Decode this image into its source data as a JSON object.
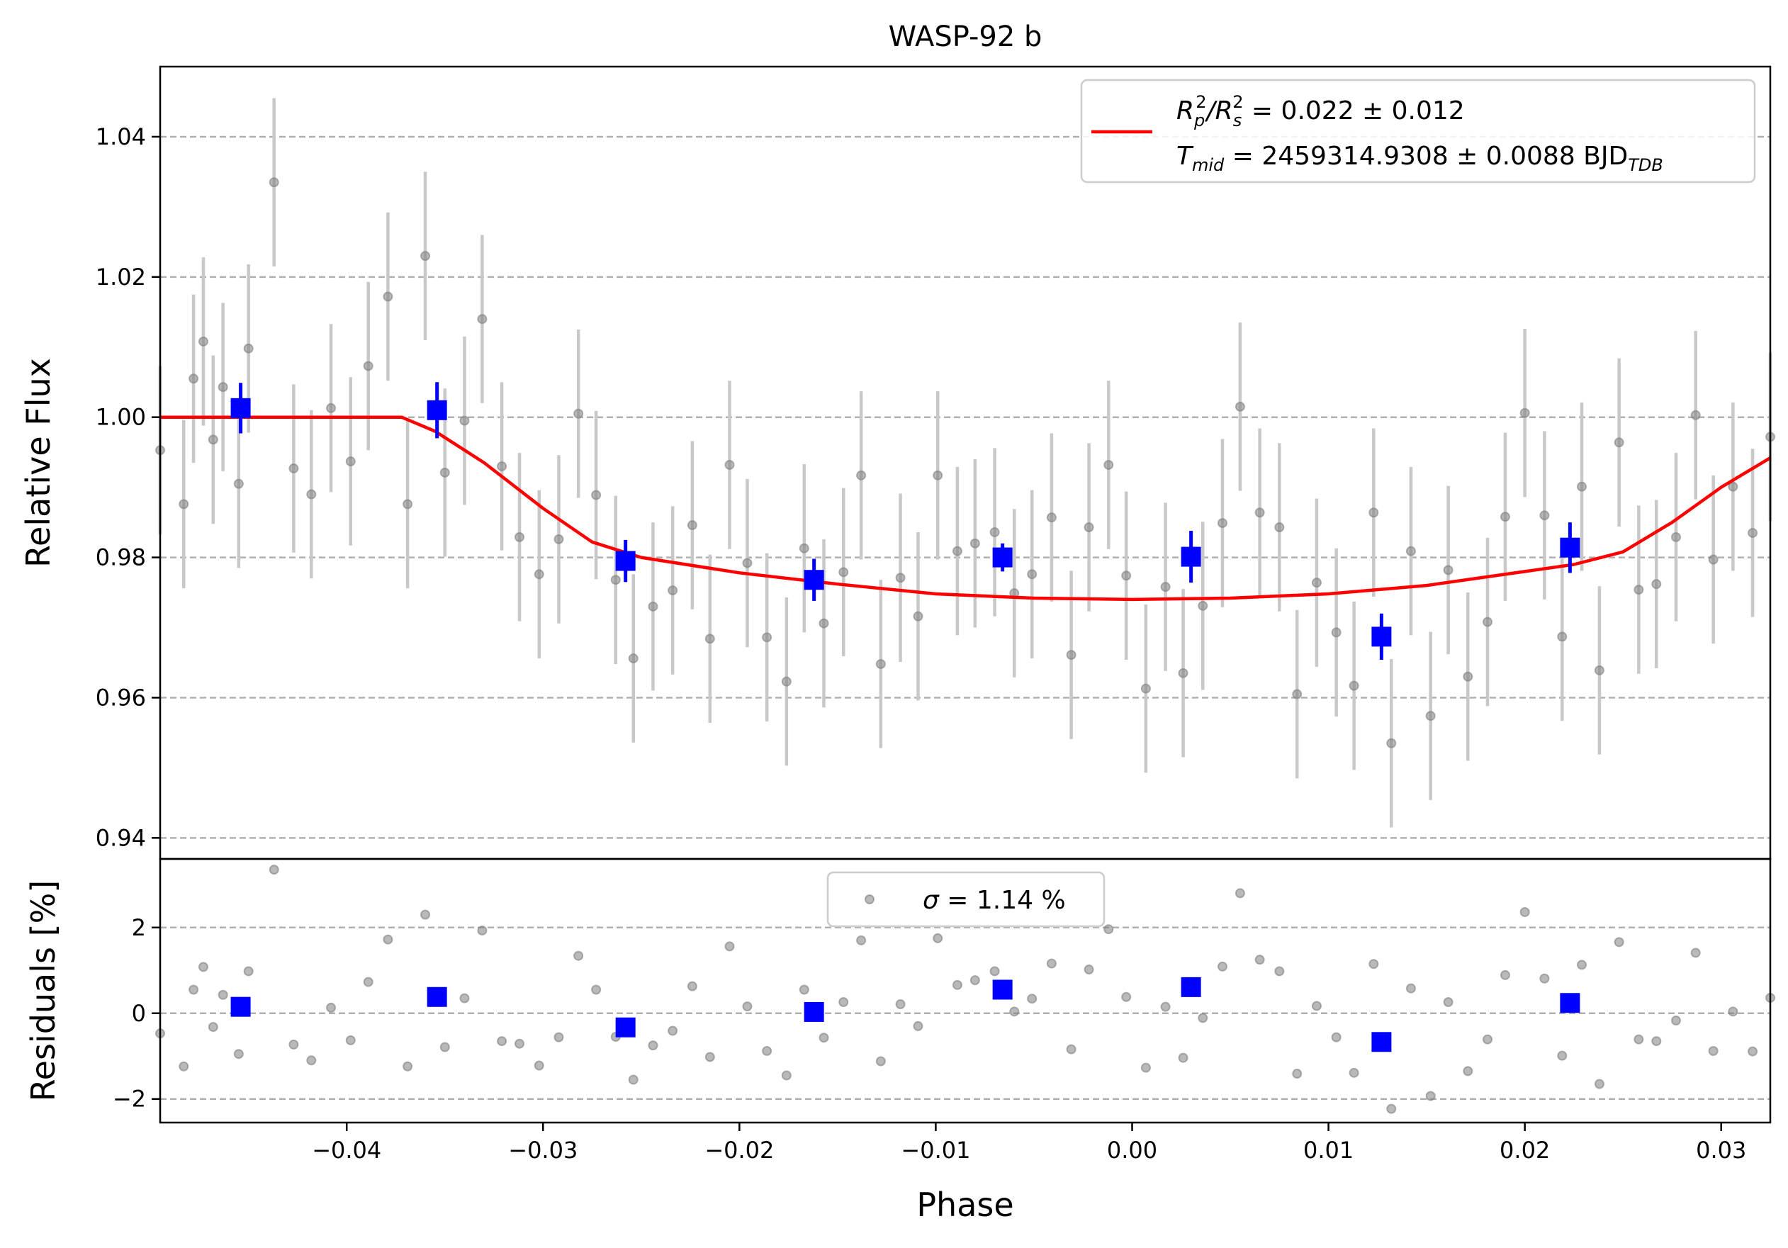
{
  "chart_data": {
    "type": "scatter",
    "title": "WASP-92 b",
    "xlabel": "Phase",
    "xlim": [
      -0.0495,
      0.0325
    ],
    "xticks": [
      -0.04,
      -0.03,
      -0.02,
      -0.01,
      0.0,
      0.01,
      0.02,
      0.03
    ],
    "xtick_labels": [
      "−0.04",
      "−0.03",
      "−0.02",
      "−0.01",
      "0.00",
      "0.01",
      "0.02",
      "0.03"
    ],
    "grid": "horizontal dashed",
    "colors": {
      "raw": "#808080",
      "raw_err": "#c8c8c8",
      "binned": "#0000ff",
      "model": "#ff0000"
    },
    "panels": {
      "flux": {
        "ylabel": "Relative Flux",
        "ylim": [
          0.937,
          1.05
        ],
        "yticks": [
          0.94,
          0.96,
          0.98,
          1.0,
          1.02,
          1.04
        ],
        "ytick_labels": [
          "0.94",
          "0.96",
          "0.98",
          "1.00",
          "1.02",
          "1.04"
        ],
        "legend": {
          "position": "upper-right",
          "prefix1": "R",
          "sub1a": "p",
          "sup1a": "2",
          "slash": "/R",
          "sub1b": "s",
          "sup1b": "2",
          "value1": " = 0.022 ± 0.012",
          "prefix2": "T",
          "sub2": "mid",
          "value2": " = 2459314.9308 ± 0.0088 BJD",
          "sub2b": "TDB"
        },
        "raw": {
          "x": [
            -0.0495,
            -0.0483,
            -0.0478,
            -0.0473,
            -0.0468,
            -0.0463,
            -0.0455,
            -0.045,
            -0.0437,
            -0.0427,
            -0.0418,
            -0.0408,
            -0.0398,
            -0.0389,
            -0.0379,
            -0.0369,
            -0.036,
            -0.035,
            -0.034,
            -0.0331,
            -0.0321,
            -0.0312,
            -0.0302,
            -0.0292,
            -0.0282,
            -0.0273,
            -0.0263,
            -0.0254,
            -0.0244,
            -0.0234,
            -0.0224,
            -0.0215,
            -0.0205,
            -0.0196,
            -0.0186,
            -0.0176,
            -0.0167,
            -0.0157,
            -0.0147,
            -0.0138,
            -0.0128,
            -0.0118,
            -0.0109,
            -0.0099,
            -0.0089,
            -0.008,
            -0.007,
            -0.006,
            -0.0051,
            -0.0041,
            -0.0031,
            -0.0022,
            -0.0012,
            -0.0003,
            0.0007,
            0.0017,
            0.0026,
            0.0036,
            0.0046,
            0.0055,
            0.0065,
            0.0075,
            0.0084,
            0.0094,
            0.0104,
            0.0113,
            0.0123,
            0.0132,
            0.0142,
            0.0152,
            0.0161,
            0.0171,
            0.0181,
            0.019,
            0.02,
            0.021,
            0.0219,
            0.0229,
            0.0238,
            0.0248,
            0.0258,
            0.0267,
            0.0277,
            0.0287,
            0.0296,
            0.0306,
            0.0316,
            0.0325
          ],
          "y": [
            0.9953,
            0.9876,
            1.0055,
            1.0108,
            0.9968,
            1.0043,
            0.9905,
            1.0098,
            1.0335,
            0.9927,
            0.989,
            1.0013,
            0.9937,
            1.0073,
            1.0172,
            0.9876,
            1.023,
            0.9921,
            0.9995,
            1.014,
            0.993,
            0.9829,
            0.9776,
            0.9826,
            1.0005,
            0.9889,
            0.9768,
            0.9656,
            0.973,
            0.9753,
            0.9846,
            0.9684,
            0.9932,
            0.9792,
            0.9686,
            0.9623,
            0.9813,
            0.9706,
            0.9779,
            0.9917,
            0.9648,
            0.9771,
            0.9716,
            0.9917,
            0.9809,
            0.982,
            0.9836,
            0.9749,
            0.9776,
            0.9857,
            0.9661,
            0.9843,
            0.9932,
            0.9774,
            0.9613,
            0.9758,
            0.9635,
            0.9731,
            0.9849,
            1.0015,
            0.9864,
            0.9843,
            0.9605,
            0.9764,
            0.9693,
            0.9617,
            0.9864,
            0.9535,
            0.9809,
            0.9574,
            0.9782,
            0.963,
            0.9708,
            0.9858,
            1.0006,
            0.986,
            0.9687,
            0.9901,
            0.9639,
            0.9964,
            0.9754,
            0.9762,
            0.9829,
            1.0003,
            0.9797,
            0.9901,
            0.9835,
            0.9972
          ],
          "err": [
            0.012,
            0.012,
            0.012,
            0.012,
            0.012,
            0.012,
            0.012,
            0.012,
            0.012,
            0.012,
            0.012,
            0.012,
            0.012,
            0.012,
            0.012,
            0.012,
            0.012,
            0.012,
            0.012,
            0.012,
            0.012,
            0.012,
            0.012,
            0.012,
            0.012,
            0.012,
            0.012,
            0.012,
            0.012,
            0.012,
            0.012,
            0.012,
            0.012,
            0.012,
            0.012,
            0.012,
            0.012,
            0.012,
            0.012,
            0.012,
            0.012,
            0.012,
            0.012,
            0.012,
            0.012,
            0.012,
            0.012,
            0.012,
            0.012,
            0.012,
            0.012,
            0.012,
            0.012,
            0.012,
            0.012,
            0.012,
            0.012,
            0.012,
            0.012,
            0.012,
            0.012,
            0.012,
            0.012,
            0.012,
            0.012,
            0.012,
            0.012,
            0.012,
            0.012,
            0.012,
            0.012,
            0.012,
            0.012,
            0.012,
            0.012,
            0.012,
            0.012,
            0.012,
            0.012,
            0.012,
            0.012,
            0.012,
            0.012,
            0.012,
            0.012,
            0.012,
            0.012,
            0.012
          ]
        },
        "binned": {
          "x": [
            -0.0454,
            -0.0354,
            -0.0258,
            -0.0162,
            -0.0066,
            0.003,
            0.0127,
            0.0223
          ],
          "y": [
            1.0013,
            1.001,
            0.9795,
            0.9768,
            0.98,
            0.9801,
            0.9687,
            0.9814
          ],
          "err": [
            0.0036,
            0.004,
            0.003,
            0.003,
            0.002,
            0.0037,
            0.0033,
            0.0036
          ]
        },
        "model": {
          "x": [
            -0.0495,
            -0.0372,
            -0.0355,
            -0.033,
            -0.03,
            -0.0275,
            -0.025,
            -0.02,
            -0.015,
            -0.01,
            -0.005,
            0.0,
            0.005,
            0.01,
            0.015,
            0.02,
            0.0225,
            0.025,
            0.0275,
            0.03,
            0.0325
          ],
          "y": [
            1.0,
            1.0,
            0.998,
            0.9935,
            0.987,
            0.9822,
            0.98,
            0.9778,
            0.9762,
            0.9748,
            0.9742,
            0.974,
            0.9742,
            0.9748,
            0.976,
            0.978,
            0.979,
            0.9808,
            0.985,
            0.99,
            0.9942
          ]
        }
      },
      "residuals": {
        "ylabel": "Residuals [%]",
        "ylim": [
          -2.55,
          3.6
        ],
        "yticks": [
          -2,
          0,
          2
        ],
        "ytick_labels": [
          "−2",
          "0",
          "2"
        ],
        "legend": {
          "position": "upper-center",
          "symbol": "σ",
          "text": " = 1.14 %"
        },
        "raw_y": [
          -0.47,
          -1.24,
          0.55,
          1.08,
          -0.32,
          0.43,
          -0.95,
          0.98,
          3.35,
          -0.73,
          -1.1,
          0.13,
          -0.63,
          0.73,
          1.72,
          -1.24,
          2.3,
          -0.79,
          0.35,
          1.93,
          -0.65,
          -0.71,
          -1.22,
          -0.56,
          1.34,
          0.55,
          -0.55,
          -1.55,
          -0.75,
          -0.41,
          0.63,
          -1.02,
          1.56,
          0.16,
          -0.88,
          -1.45,
          0.55,
          -0.57,
          0.26,
          1.7,
          -1.12,
          0.21,
          -0.3,
          1.75,
          0.66,
          0.77,
          0.98,
          0.04,
          0.34,
          1.16,
          -0.84,
          1.02,
          1.96,
          0.38,
          -1.27,
          0.15,
          -1.04,
          -0.11,
          1.09,
          2.8,
          1.25,
          0.98,
          -1.41,
          0.17,
          -0.56,
          -1.39,
          1.15,
          -2.23,
          0.58,
          -1.93,
          0.26,
          -1.35,
          -0.61,
          0.89,
          2.36,
          0.81,
          -0.99,
          1.13,
          -1.65,
          1.66,
          -0.61,
          -0.65,
          -0.17,
          1.41,
          -0.88,
          0.04,
          -0.89,
          0.36
        ],
        "binned_y": [
          0.15,
          0.38,
          -0.33,
          0.03,
          0.55,
          0.61,
          -0.67,
          0.24
        ]
      }
    }
  }
}
